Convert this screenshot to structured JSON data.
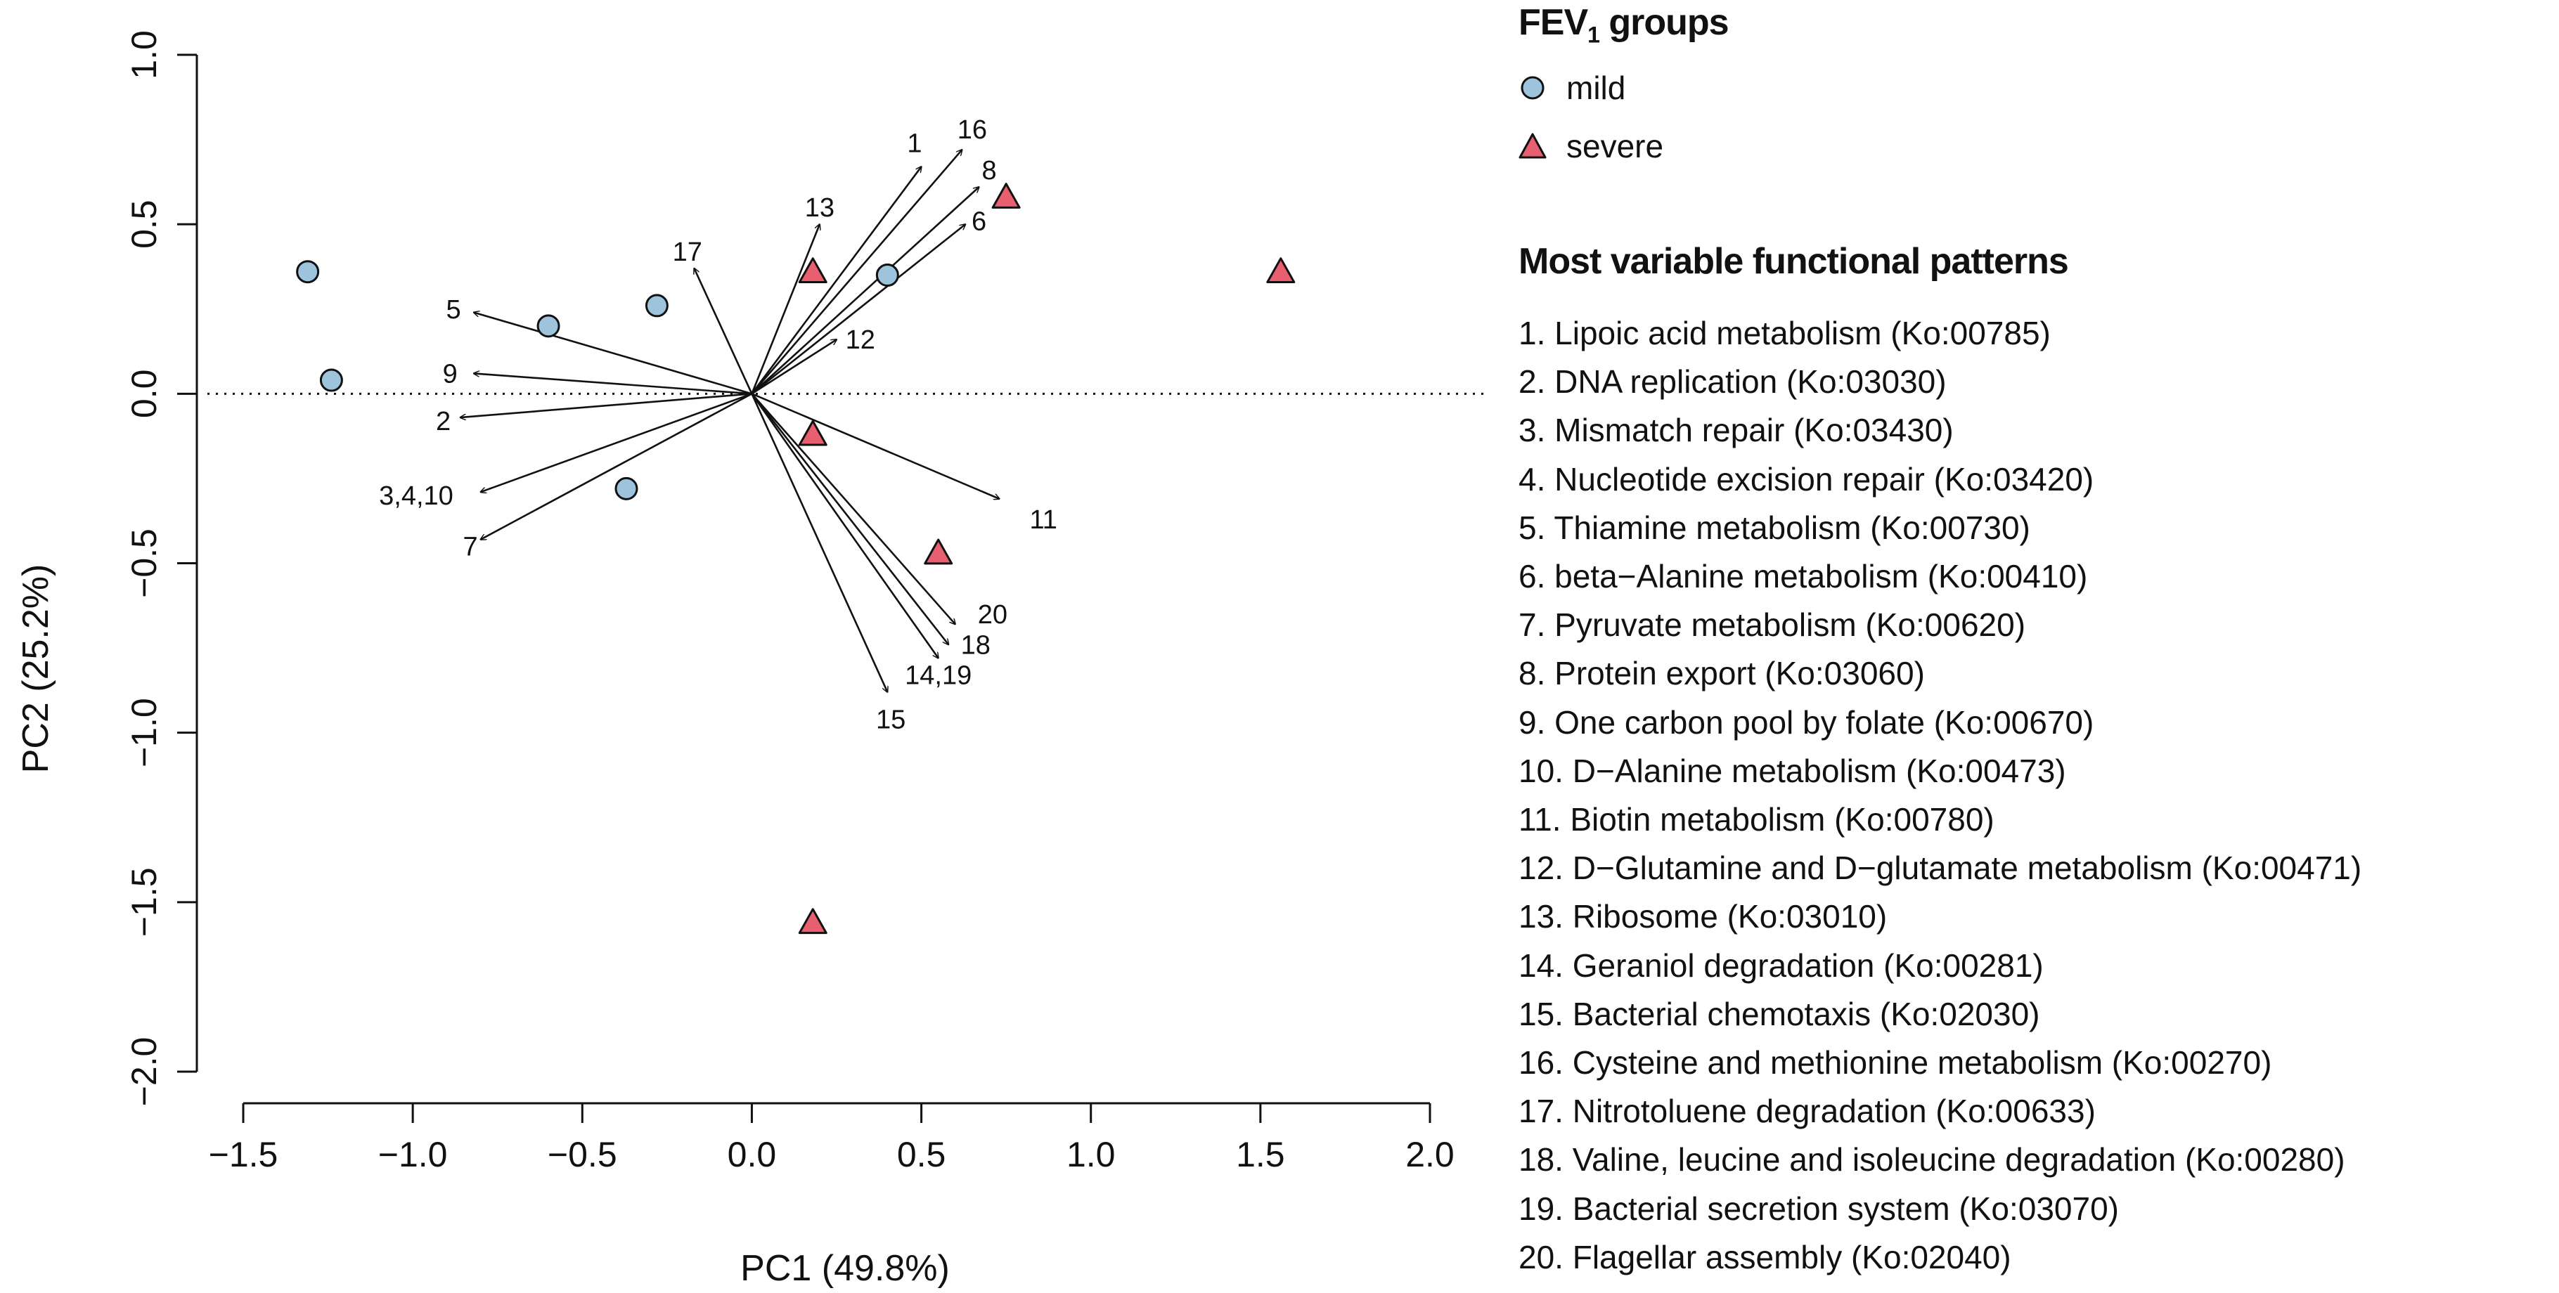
{
  "chart_data": {
    "type": "scatter",
    "subtype": "pca-biplot",
    "xlabel": "PC1 (49.8%)",
    "ylabel": "PC2 (25.2%)",
    "xlim": [
      -1.5,
      2.0
    ],
    "ylim": [
      -2.0,
      1.0
    ],
    "xticks": [
      -1.5,
      -1.0,
      -0.5,
      0.0,
      0.5,
      1.0,
      1.5,
      2.0
    ],
    "yticks": [
      -2.0,
      -1.5,
      -1.0,
      -0.5,
      0.0,
      0.5,
      1.0
    ],
    "xtick_labels": [
      "−1.5",
      "−1.0",
      "−0.5",
      "0.0",
      "0.5",
      "1.0",
      "1.5",
      "2.0"
    ],
    "ytick_labels": [
      "−2.0",
      "−1.5",
      "−1.0",
      "−0.5",
      "0.0",
      "0.5",
      "1.0"
    ],
    "reference_line": {
      "y": 0,
      "style": "dotted"
    },
    "series": [
      {
        "name": "mild",
        "marker": "circle",
        "color": "#9ec3dc",
        "points": [
          {
            "x": -1.31,
            "y": 0.36
          },
          {
            "x": -1.24,
            "y": 0.04
          },
          {
            "x": -0.6,
            "y": 0.2
          },
          {
            "x": -0.28,
            "y": 0.26
          },
          {
            "x": -0.37,
            "y": -0.28
          },
          {
            "x": 0.4,
            "y": 0.35
          }
        ]
      },
      {
        "name": "severe",
        "marker": "triangle",
        "color": "#e8606f",
        "points": [
          {
            "x": 0.18,
            "y": 0.36
          },
          {
            "x": 0.75,
            "y": 0.58
          },
          {
            "x": 1.56,
            "y": 0.36
          },
          {
            "x": 0.18,
            "y": -0.12
          },
          {
            "x": 0.55,
            "y": -0.47
          },
          {
            "x": 0.18,
            "y": -1.56
          }
        ]
      }
    ],
    "loadings": [
      {
        "label": "1",
        "x": 0.5,
        "y": 0.67,
        "lx": 0.48,
        "ly": 0.74
      },
      {
        "label": "16",
        "x": 0.62,
        "y": 0.72,
        "lx": 0.65,
        "ly": 0.78
      },
      {
        "label": "8",
        "x": 0.67,
        "y": 0.61,
        "lx": 0.7,
        "ly": 0.66
      },
      {
        "label": "6",
        "x": 0.63,
        "y": 0.5,
        "lx": 0.67,
        "ly": 0.51
      },
      {
        "label": "13",
        "x": 0.2,
        "y": 0.5,
        "lx": 0.2,
        "ly": 0.55
      },
      {
        "label": "17",
        "x": -0.17,
        "y": 0.37,
        "lx": -0.19,
        "ly": 0.42
      },
      {
        "label": "5",
        "x": -0.82,
        "y": 0.24,
        "lx": -0.88,
        "ly": 0.25
      },
      {
        "label": "9",
        "x": -0.82,
        "y": 0.06,
        "lx": -0.89,
        "ly": 0.06
      },
      {
        "label": "2",
        "x": -0.86,
        "y": -0.07,
        "lx": -0.91,
        "ly": -0.08
      },
      {
        "label": "3,4,10",
        "x": -0.8,
        "y": -0.29,
        "lx": -0.99,
        "ly": -0.3
      },
      {
        "label": "7",
        "x": -0.8,
        "y": -0.43,
        "lx": -0.83,
        "ly": -0.45
      },
      {
        "label": "12",
        "x": 0.25,
        "y": 0.16,
        "lx": 0.32,
        "ly": 0.16
      },
      {
        "label": "11",
        "x": 0.73,
        "y": -0.31,
        "lx": 0.86,
        "ly": -0.37
      },
      {
        "label": "20",
        "x": 0.6,
        "y": -0.68,
        "lx": 0.71,
        "ly": -0.65
      },
      {
        "label": "18",
        "x": 0.58,
        "y": -0.74,
        "lx": 0.66,
        "ly": -0.74
      },
      {
        "label": "14,19",
        "x": 0.55,
        "y": -0.78,
        "lx": 0.55,
        "ly": -0.83
      },
      {
        "label": "15",
        "x": 0.4,
        "y": -0.88,
        "lx": 0.41,
        "ly": -0.96
      }
    ],
    "legend": {
      "title_main": "FEV",
      "title_sub": "1",
      "title_rest": " groups",
      "entries": [
        "mild",
        "severe"
      ],
      "patterns_title": "Most variable functional patterns",
      "patterns": [
        "1. Lipoic acid metabolism (Ko:00785)",
        "2. DNA replication (Ko:03030)",
        "3. Mismatch repair (Ko:03430)",
        "4. Nucleotide excision repair (Ko:03420)",
        "5. Thiamine metabolism (Ko:00730)",
        "6. beta−Alanine metabolism (Ko:00410)",
        "7. Pyruvate metabolism (Ko:00620)",
        "8. Protein export (Ko:03060)",
        "9. One carbon pool by folate (Ko:00670)",
        "10. D−Alanine metabolism (Ko:00473)",
        "11. Biotin metabolism (Ko:00780)",
        "12. D−Glutamine and D−glutamate metabolism (Ko:00471)",
        "13. Ribosome (Ko:03010)",
        "14. Geraniol degradation (Ko:00281)",
        "15. Bacterial chemotaxis (Ko:02030)",
        "16. Cysteine and methionine metabolism (Ko:00270)",
        "17. Nitrotoluene degradation (Ko:00633)",
        "18. Valine, leucine and isoleucine degradation (Ko:00280)",
        "19. Bacterial secretion system (Ko:03070)",
        "20. Flagellar assembly (Ko:02040)"
      ]
    }
  }
}
